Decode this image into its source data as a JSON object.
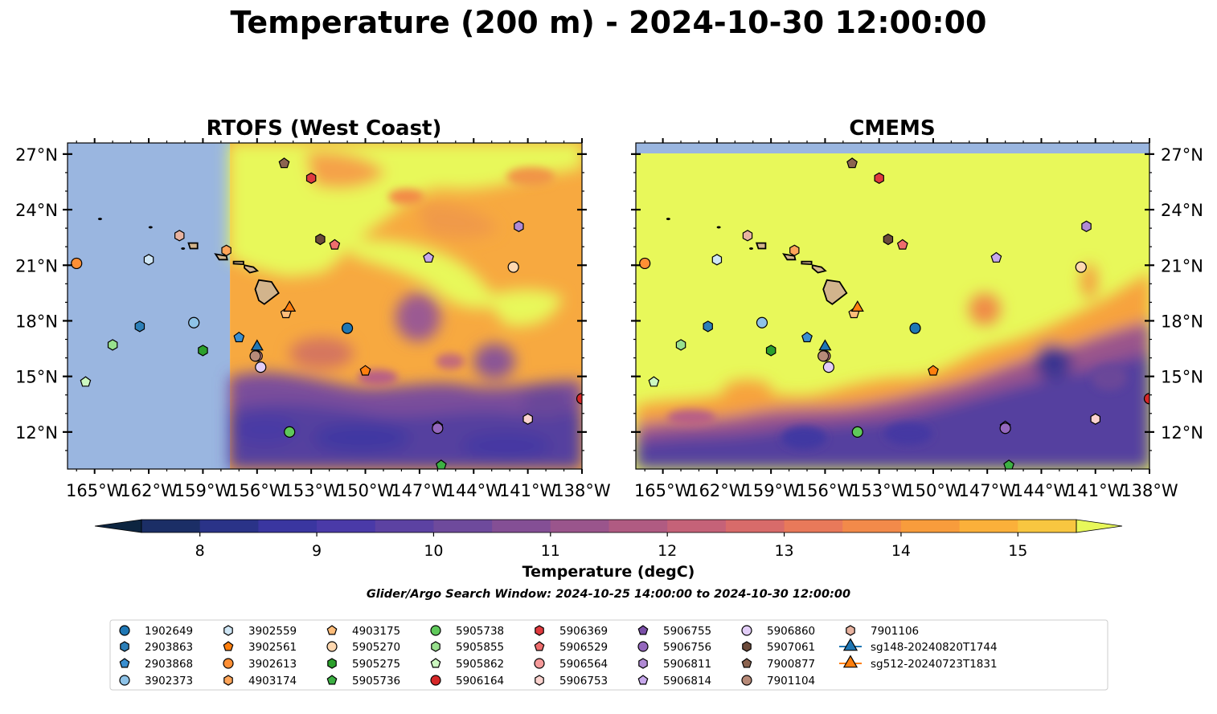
{
  "figure": {
    "title": "Temperature (200 m) - 2024-10-30 12:00:00",
    "note": "Glider/Argo Search Window: 2024-10-25 14:00:00 to 2024-10-30 12:00:00"
  },
  "colors": {
    "land_mask": "#9ab6e0",
    "island_fill": "#d2b48c",
    "warm_fill": "#e8f85a"
  },
  "chart_data": [
    {
      "type": "heatmap",
      "title": "RTOFS (West Coast)",
      "x_range_deg_lon": [
        -166.5,
        -138
      ],
      "y_range_deg_lat": [
        10,
        27.6
      ],
      "model_domain_west_edge_lon": -157.5,
      "x_ticks": [
        "165°W",
        "162°W",
        "159°W",
        "156°W",
        "153°W",
        "150°W",
        "147°W",
        "144°W",
        "141°W",
        "138°W"
      ],
      "y_ticks": [
        "27°N",
        "24°N",
        "21°N",
        "18°N",
        "15°N",
        "12°N"
      ],
      "y_tick_side": "left"
    },
    {
      "type": "heatmap",
      "title": "CMEMS",
      "x_range_deg_lon": [
        -166.5,
        -138
      ],
      "y_range_deg_lat": [
        10,
        27.6
      ],
      "x_ticks": [
        "165°W",
        "162°W",
        "159°W",
        "156°W",
        "153°W",
        "150°W",
        "147°W",
        "144°W",
        "141°W",
        "138°W"
      ],
      "y_ticks": [
        "27°N",
        "24°N",
        "21°N",
        "18°N",
        "15°N",
        "12°N"
      ],
      "y_tick_side": "right"
    }
  ],
  "colorbar": {
    "label": "Temperature (degC)",
    "min": 7.5,
    "max": 15.5,
    "step": 0.5,
    "extend": "both",
    "ticks": [
      "8",
      "9",
      "10",
      "11",
      "12",
      "13",
      "14",
      "15"
    ],
    "tick_values": [
      8,
      9,
      10,
      11,
      12,
      13,
      14,
      15
    ],
    "colors": [
      "#0d2540",
      "#1b2e66",
      "#2a3388",
      "#3a36a0",
      "#4a3aa8",
      "#5c42a2",
      "#6e4a9c",
      "#844f95",
      "#9a558c",
      "#b05b82",
      "#c56278",
      "#d86b6a",
      "#e8795a",
      "#f28a4a",
      "#f89c3c",
      "#fbb03a",
      "#f8c640",
      "#f0de4a",
      "#e8f85a"
    ]
  },
  "legend": {
    "entries": [
      {
        "label": "1902649",
        "marker": "circle",
        "color": "#1f77b4"
      },
      {
        "label": "2903863",
        "marker": "hexagon",
        "color": "#2c7fb8"
      },
      {
        "label": "2903868",
        "marker": "pentagon",
        "color": "#3a8fd0"
      },
      {
        "label": "3902373",
        "marker": "circle",
        "color": "#8ec3e8"
      },
      {
        "label": "3902559",
        "marker": "hexagon",
        "color": "#cfe6f5"
      },
      {
        "label": "3902561",
        "marker": "pentagon",
        "color": "#ff7f0e"
      },
      {
        "label": "3902613",
        "marker": "circle",
        "color": "#ff8f35"
      },
      {
        "label": "4903174",
        "marker": "hexagon",
        "color": "#ffa559"
      },
      {
        "label": "4903175",
        "marker": "pentagon",
        "color": "#ffbd7a"
      },
      {
        "label": "5905270",
        "marker": "circle",
        "color": "#ffd8b0"
      },
      {
        "label": "5905275",
        "marker": "hexagon",
        "color": "#2ca02c"
      },
      {
        "label": "5905736",
        "marker": "pentagon",
        "color": "#3cb043"
      },
      {
        "label": "5905738",
        "marker": "circle",
        "color": "#5fc95a"
      },
      {
        "label": "5905855",
        "marker": "hexagon",
        "color": "#98e08d"
      },
      {
        "label": "5905862",
        "marker": "pentagon",
        "color": "#ccf7c0"
      },
      {
        "label": "5906164",
        "marker": "circle",
        "color": "#d62728"
      },
      {
        "label": "5906369",
        "marker": "hexagon",
        "color": "#e03a3e"
      },
      {
        "label": "5906529",
        "marker": "pentagon",
        "color": "#ee6d6d"
      },
      {
        "label": "5906564",
        "marker": "circle",
        "color": "#f59a9a"
      },
      {
        "label": "5906753",
        "marker": "hexagon",
        "color": "#fbd3cf"
      },
      {
        "label": "5906755",
        "marker": "pentagon",
        "color": "#7a4fa8"
      },
      {
        "label": "5906756",
        "marker": "circle",
        "color": "#9467bd"
      },
      {
        "label": "5906811",
        "marker": "hexagon",
        "color": "#b08ad4"
      },
      {
        "label": "5906814",
        "marker": "pentagon",
        "color": "#c7a8ec"
      },
      {
        "label": "5906860",
        "marker": "circle",
        "color": "#e2cdf7"
      },
      {
        "label": "5907061",
        "marker": "hexagon",
        "color": "#6b4a3a"
      },
      {
        "label": "7900877",
        "marker": "pentagon",
        "color": "#8c6450"
      },
      {
        "label": "7901104",
        "marker": "circle",
        "color": "#b78a78"
      },
      {
        "label": "7901106",
        "marker": "hexagon",
        "color": "#e8b3a0"
      },
      {
        "label": "sg148-20240820T1744",
        "marker": "triangle",
        "color": "#1f77b4"
      },
      {
        "label": "sg512-20240723T1831",
        "marker": "triangle",
        "color": "#ff7f0e"
      }
    ]
  },
  "observations": [
    {
      "label": "1902649",
      "lon": -151.0,
      "lat": 17.6
    },
    {
      "label": "2903863",
      "lon": -162.5,
      "lat": 17.7
    },
    {
      "label": "2903868",
      "lon": -157.0,
      "lat": 17.1
    },
    {
      "label": "3902373",
      "lon": -159.5,
      "lat": 17.9
    },
    {
      "label": "3902559",
      "lon": -162.0,
      "lat": 21.3
    },
    {
      "label": "3902561",
      "lon": -150.0,
      "lat": 15.3
    },
    {
      "label": "3902613",
      "lon": -166.0,
      "lat": 21.1
    },
    {
      "label": "4903174",
      "lon": -157.7,
      "lat": 21.8
    },
    {
      "label": "4903175",
      "lon": -154.4,
      "lat": 18.4
    },
    {
      "label": "5905270",
      "lon": -141.8,
      "lat": 20.9
    },
    {
      "label": "5905275",
      "lon": -159.0,
      "lat": 16.4
    },
    {
      "label": "5905736",
      "lon": -145.8,
      "lat": 10.2
    },
    {
      "label": "5905738",
      "lon": -154.2,
      "lat": 12.0
    },
    {
      "label": "5905855",
      "lon": -164.0,
      "lat": 16.7
    },
    {
      "label": "5905862",
      "lon": -165.5,
      "lat": 14.7
    },
    {
      "label": "5906164",
      "lon": -138.0,
      "lat": 13.8
    },
    {
      "label": "5906369",
      "lon": -153.0,
      "lat": 25.7
    },
    {
      "label": "5906529",
      "lon": -151.7,
      "lat": 22.1
    },
    {
      "label": "5906564",
      "lon": -156.0,
      "lat": 16.1
    },
    {
      "label": "5906753",
      "lon": -141.0,
      "lat": 12.7
    },
    {
      "label": "5906755",
      "lon": -146.0,
      "lat": 12.3
    },
    {
      "label": "5906756",
      "lon": -146.0,
      "lat": 12.2
    },
    {
      "label": "5906811",
      "lon": -141.5,
      "lat": 23.1
    },
    {
      "label": "5906814",
      "lon": -146.5,
      "lat": 21.4
    },
    {
      "label": "5906860",
      "lon": -155.8,
      "lat": 15.5
    },
    {
      "label": "5907061",
      "lon": -152.5,
      "lat": 22.4
    },
    {
      "label": "7900877",
      "lon": -154.5,
      "lat": 26.5
    },
    {
      "label": "7901104",
      "lon": -156.1,
      "lat": 16.1
    },
    {
      "label": "7901106",
      "lon": -160.3,
      "lat": 22.6
    },
    {
      "label": "sg148-20240820T1744",
      "lon": -156.0,
      "lat": 16.6
    },
    {
      "label": "sg512-20240723T1831",
      "lon": -154.2,
      "lat": 18.7
    }
  ]
}
